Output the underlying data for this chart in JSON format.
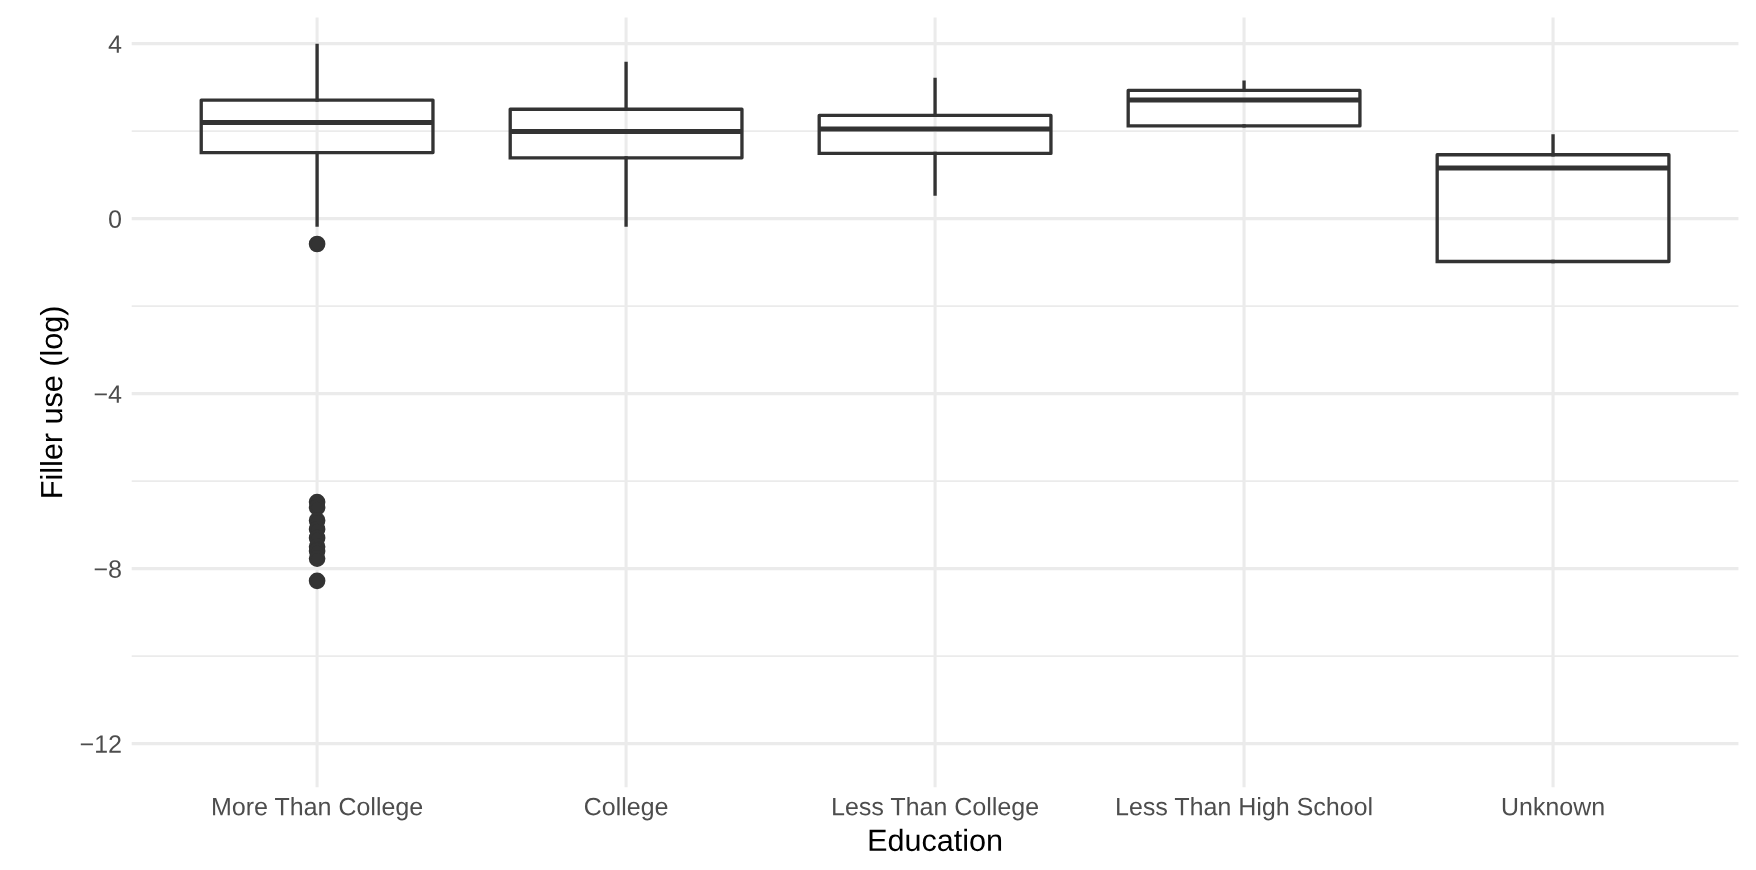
{
  "chart_data": {
    "type": "box",
    "xlabel": "Education",
    "ylabel": "Filler use (log)",
    "categories": [
      "More Than College",
      "College",
      "Less Than College",
      "Less Than High School",
      "Unknown"
    ],
    "boxes": [
      {
        "low": -0.15,
        "q1": 1.51,
        "median": 2.2,
        "q3": 2.71,
        "high": 3.96,
        "outliers": [
          -0.58,
          -6.48,
          -6.6,
          -6.9,
          -7.1,
          -7.3,
          -7.5,
          -7.6,
          -7.77,
          -8.28
        ]
      },
      {
        "low": -0.15,
        "q1": 1.39,
        "median": 1.99,
        "q3": 2.5,
        "high": 3.55
      },
      {
        "low": 0.56,
        "q1": 1.49,
        "median": 2.05,
        "q3": 2.36,
        "high": 3.18
      },
      {
        "low": 2.12,
        "q1": 2.12,
        "median": 2.71,
        "q3": 2.93,
        "high": 3.12
      },
      {
        "low": -0.98,
        "q1": -0.98,
        "median": 1.16,
        "q3": 1.46,
        "high": 1.89
      }
    ],
    "ylim": [
      -13,
      4.6
    ],
    "yticks": [
      -12,
      -8,
      -4,
      0,
      4
    ],
    "grid": true
  }
}
